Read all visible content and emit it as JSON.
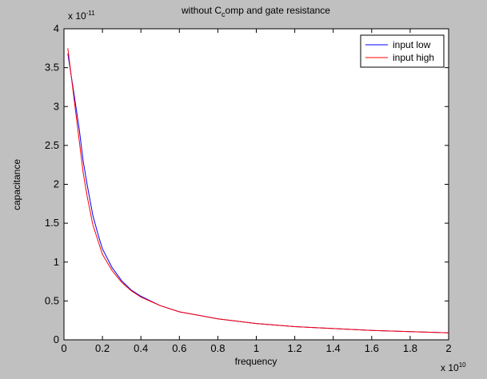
{
  "chart_data": {
    "type": "line",
    "title": {
      "before": "without C",
      "subscript": "c",
      "after": "omp and gate resistance"
    },
    "xlabel": "frequency",
    "ylabel": "capacitance",
    "x_exponent_label": {
      "base": "x 10",
      "exponent": "10"
    },
    "y_exponent_label": {
      "base": "x 10",
      "exponent": "-11"
    },
    "xlim": [
      0,
      2
    ],
    "ylim": [
      0,
      4
    ],
    "x_ticks": [
      "0",
      "0.2",
      "0.4",
      "0.6",
      "0.8",
      "1",
      "1.2",
      "1.4",
      "1.6",
      "1.8",
      "2"
    ],
    "y_ticks": [
      "0",
      "0.5",
      "1",
      "1.5",
      "2",
      "2.5",
      "3",
      "3.5",
      "4"
    ],
    "grid": false,
    "legend_position": "top-right",
    "series": [
      {
        "name": "input low",
        "color": "#0000ff",
        "x": [
          0.02,
          0.05,
          0.08,
          0.1,
          0.12,
          0.15,
          0.18,
          0.2,
          0.25,
          0.3,
          0.35,
          0.4,
          0.5,
          0.6,
          0.8,
          1.0,
          1.2,
          1.4,
          1.6,
          1.8,
          2.0
        ],
        "y": [
          3.68,
          3.2,
          2.7,
          2.3,
          2.0,
          1.6,
          1.33,
          1.17,
          0.93,
          0.76,
          0.64,
          0.56,
          0.44,
          0.36,
          0.27,
          0.21,
          0.17,
          0.145,
          0.12,
          0.105,
          0.09
        ]
      },
      {
        "name": "input high",
        "color": "#ff0000",
        "x": [
          0.02,
          0.05,
          0.08,
          0.1,
          0.12,
          0.15,
          0.18,
          0.2,
          0.25,
          0.3,
          0.35,
          0.4,
          0.5,
          0.6,
          0.8,
          1.0,
          1.2,
          1.4,
          1.6,
          1.8,
          2.0
        ],
        "y": [
          3.75,
          3.15,
          2.55,
          2.15,
          1.85,
          1.48,
          1.25,
          1.1,
          0.89,
          0.74,
          0.63,
          0.55,
          0.44,
          0.36,
          0.27,
          0.21,
          0.17,
          0.145,
          0.12,
          0.105,
          0.09
        ]
      }
    ]
  }
}
